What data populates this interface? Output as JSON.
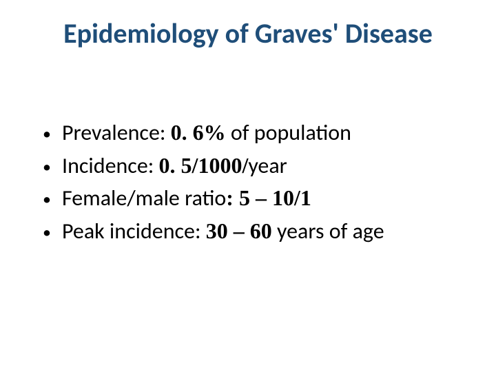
{
  "slide": {
    "title": "Epidemiology of Graves' Disease",
    "title_color": "#1f4e79",
    "text_color": "#000000",
    "background_color": "#ffffff",
    "title_fontsize": 40,
    "body_fontsize": 32,
    "bullets": [
      {
        "pre": "Prevalence: ",
        "emph": "0. 6%",
        "post": " of population"
      },
      {
        "pre": "Incidence: ",
        "emph": "0. 5/1000/",
        "post": "year"
      },
      {
        "pre": "Female/male ratio",
        "emph": ": 5 – 10/1",
        "post": ""
      },
      {
        "pre": "Peak incidence: ",
        "emph": "30 – 60",
        "post": " years of age"
      }
    ]
  }
}
